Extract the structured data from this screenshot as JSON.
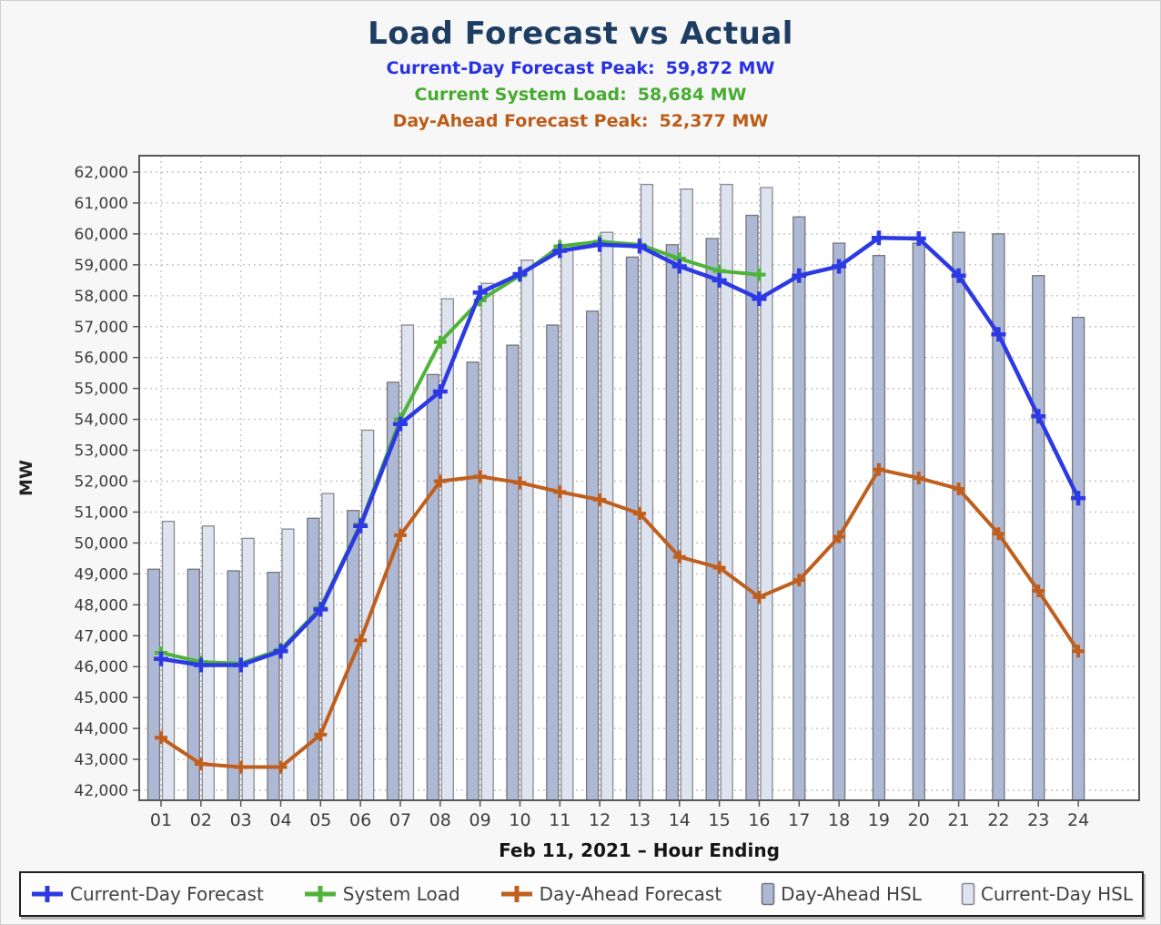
{
  "header": {
    "title": "Load Forecast vs Actual",
    "subtitles": [
      {
        "label": "Current-Day Forecast Peak:",
        "value": "59,872 MW",
        "color": "#2832e2"
      },
      {
        "label": "Current System Load:",
        "value": "58,684 MW",
        "color": "#47ab30"
      },
      {
        "label": "Day-Ahead Forecast Peak:",
        "value": "52,377 MW",
        "color": "#bd5c17"
      }
    ]
  },
  "chart_data": {
    "type": "bar+line combo",
    "title": "Load Forecast vs Actual",
    "xlabel": "Feb 11, 2021 – Hour Ending",
    "ylabel": "MW",
    "ylim": [
      41700,
      62500
    ],
    "ytick_start": 42000,
    "ytick_end": 62000,
    "ytick_step": 1000,
    "grid": true,
    "legend_position": "bottom",
    "categories": [
      "01",
      "02",
      "03",
      "04",
      "05",
      "06",
      "07",
      "08",
      "09",
      "10",
      "11",
      "12",
      "13",
      "14",
      "15",
      "16",
      "17",
      "18",
      "19",
      "20",
      "21",
      "22",
      "23",
      "24"
    ],
    "series": [
      {
        "name": "Day-Ahead HSL",
        "type": "bar",
        "color": "#adb8d5",
        "stroke": "#75757a",
        "values": [
          49150,
          49150,
          49100,
          49050,
          50800,
          51050,
          55200,
          55450,
          55850,
          56400,
          57050,
          57500,
          59250,
          59650,
          59850,
          60600,
          60550,
          59700,
          59300,
          59700,
          60050,
          60000,
          58650,
          57300
        ]
      },
      {
        "name": "Current-Day HSL",
        "type": "bar",
        "color": "#dee3f0",
        "stroke": "#8a8a90",
        "values": [
          50700,
          50550,
          50150,
          50450,
          51600,
          53650,
          57050,
          57900,
          58400,
          59150,
          59500,
          60050,
          61600,
          61450,
          61600,
          61500,
          null,
          null,
          null,
          null,
          null,
          null,
          null,
          null
        ]
      },
      {
        "name": "Day-Ahead Forecast",
        "type": "line",
        "color": "#c05f1d",
        "values": [
          43700,
          42850,
          42750,
          42750,
          43800,
          46850,
          50250,
          52000,
          52150,
          51950,
          51650,
          51400,
          50950,
          49550,
          49200,
          48250,
          48800,
          50200,
          52377,
          52100,
          51750,
          50300,
          48450,
          46500
        ]
      },
      {
        "name": "System Load",
        "type": "line",
        "color": "#4fb33a",
        "values": [
          46450,
          46150,
          46100,
          46550,
          47900,
          50600,
          54000,
          56500,
          57850,
          58650,
          59600,
          59750,
          59650,
          59200,
          58800,
          58684,
          null,
          null,
          null,
          null,
          null,
          null,
          null,
          null
        ]
      },
      {
        "name": "Current-Day Forecast",
        "type": "line",
        "color": "#2d3ae3",
        "values": [
          46250,
          46050,
          46050,
          46500,
          47850,
          50550,
          53850,
          54900,
          58100,
          58700,
          59450,
          59650,
          59600,
          58950,
          58500,
          57900,
          58650,
          58950,
          59872,
          59850,
          58650,
          56750,
          54100,
          51450
        ]
      }
    ]
  },
  "legend": {
    "items": [
      {
        "label": "Current-Day Forecast",
        "marker": "line-plus",
        "color": "#2d3ae3"
      },
      {
        "label": "System Load",
        "marker": "line-plus",
        "color": "#4fb33a"
      },
      {
        "label": "Day-Ahead Forecast",
        "marker": "line-plus",
        "color": "#c05f1d"
      },
      {
        "label": "Day-Ahead HSL",
        "marker": "bar",
        "color": "#adb8d5",
        "stroke": "#75757a"
      },
      {
        "label": "Current-Day HSL",
        "marker": "bar",
        "color": "#dee3f0",
        "stroke": "#8a8a90"
      }
    ]
  }
}
